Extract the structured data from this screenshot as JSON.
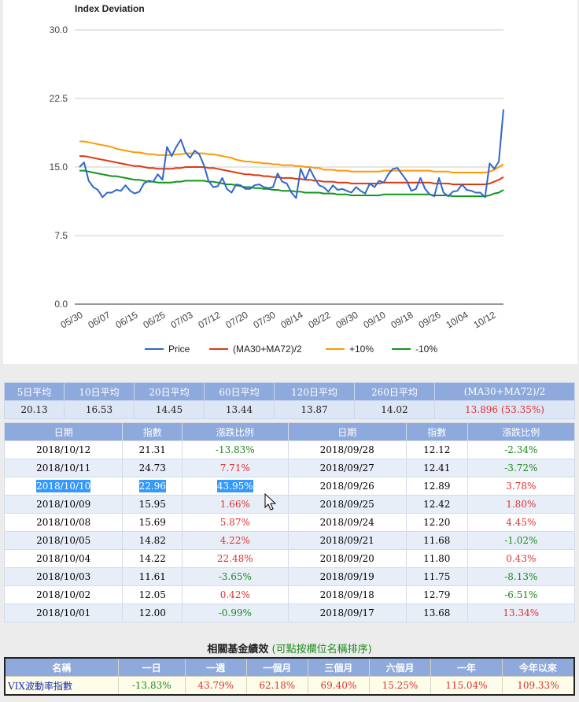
{
  "chart_data": {
    "type": "line",
    "title": "Index Deviation",
    "x_ticks": [
      "05/30",
      "06/07",
      "06/15",
      "06/25",
      "07/03",
      "07/12",
      "07/20",
      "07/30",
      "08/14",
      "08/22",
      "08/30",
      "09/10",
      "09/18",
      "09/26",
      "10/04",
      "10/12"
    ],
    "yticks": [
      "30.0",
      "22.5",
      "15.0",
      "7.5",
      "0.0"
    ],
    "ylim": [
      0,
      30
    ],
    "n_points": 93,
    "legend_position": "bottom",
    "series": [
      {
        "name": "Price",
        "color": "#3366cc",
        "values": [
          15.0,
          15.5,
          13.5,
          12.8,
          12.5,
          11.7,
          12.2,
          12.2,
          12.5,
          12.4,
          13.0,
          12.4,
          12.1,
          12.3,
          13.2,
          13.5,
          13.4,
          14.2,
          13.6,
          17.2,
          16.2,
          17.2,
          18.0,
          16.6,
          16.0,
          16.8,
          16.4,
          15.2,
          13.5,
          12.8,
          12.9,
          13.8,
          12.6,
          12.2,
          13.1,
          13.0,
          12.6,
          12.6,
          13.0,
          13.1,
          12.8,
          12.7,
          12.8,
          14.3,
          13.4,
          13.2,
          12.2,
          11.6,
          14.8,
          13.6,
          14.8,
          13.8,
          13.0,
          12.8,
          12.3,
          13.0,
          12.5,
          12.6,
          12.4,
          12.2,
          12.8,
          12.4,
          12.1,
          13.2,
          12.8,
          13.5,
          13.3,
          14.2,
          14.8,
          14.9,
          14.2,
          13.5,
          12.4,
          12.6,
          13.8,
          12.6,
          12.0,
          11.8,
          13.8,
          12.2,
          11.8,
          12.3,
          12.4,
          13.1,
          12.5,
          12.4,
          12.2,
          12.2,
          11.7,
          15.4,
          14.8,
          15.6,
          21.3
        ]
      },
      {
        "name": "(MA30+MA72)/2",
        "color": "#dc3912",
        "values": [
          16.2,
          16.2,
          16.1,
          16.0,
          15.9,
          15.8,
          15.7,
          15.6,
          15.5,
          15.4,
          15.3,
          15.2,
          15.1,
          15.1,
          15.0,
          14.9,
          14.9,
          14.8,
          14.8,
          14.8,
          14.8,
          14.9,
          14.9,
          15.0,
          15.0,
          15.0,
          15.0,
          15.0,
          14.9,
          14.9,
          14.8,
          14.7,
          14.6,
          14.5,
          14.4,
          14.3,
          14.2,
          14.2,
          14.1,
          14.1,
          14.0,
          14.0,
          13.9,
          13.9,
          13.8,
          13.8,
          13.8,
          13.7,
          13.7,
          13.6,
          13.6,
          13.5,
          13.5,
          13.4,
          13.4,
          13.4,
          13.3,
          13.3,
          13.3,
          13.2,
          13.2,
          13.2,
          13.2,
          13.2,
          13.2,
          13.2,
          13.3,
          13.3,
          13.3,
          13.3,
          13.3,
          13.3,
          13.3,
          13.3,
          13.3,
          13.3,
          13.3,
          13.2,
          13.2,
          13.2,
          13.2,
          13.1,
          13.1,
          13.1,
          13.1,
          13.1,
          13.1,
          13.1,
          13.1,
          13.2,
          13.4,
          13.6,
          13.9
        ]
      },
      {
        "name": "+10%",
        "color": "#ff9900",
        "values": [
          17.8,
          17.8,
          17.7,
          17.6,
          17.5,
          17.4,
          17.3,
          17.2,
          17.0,
          16.9,
          16.8,
          16.7,
          16.6,
          16.6,
          16.5,
          16.4,
          16.4,
          16.3,
          16.3,
          16.3,
          16.3,
          16.4,
          16.4,
          16.5,
          16.5,
          16.5,
          16.5,
          16.5,
          16.4,
          16.4,
          16.3,
          16.2,
          16.1,
          16.0,
          15.8,
          15.7,
          15.6,
          15.6,
          15.5,
          15.5,
          15.4,
          15.4,
          15.3,
          15.3,
          15.2,
          15.2,
          15.2,
          15.1,
          15.1,
          15.0,
          15.0,
          14.9,
          14.9,
          14.7,
          14.7,
          14.7,
          14.6,
          14.6,
          14.6,
          14.5,
          14.5,
          14.5,
          14.5,
          14.5,
          14.5,
          14.5,
          14.6,
          14.6,
          14.6,
          14.6,
          14.6,
          14.6,
          14.6,
          14.6,
          14.6,
          14.6,
          14.6,
          14.5,
          14.5,
          14.5,
          14.5,
          14.4,
          14.4,
          14.4,
          14.4,
          14.4,
          14.4,
          14.4,
          14.4,
          14.5,
          14.7,
          15.0,
          15.3
        ]
      },
      {
        "name": "-10%",
        "color": "#109618",
        "values": [
          14.6,
          14.6,
          14.5,
          14.4,
          14.3,
          14.2,
          14.1,
          14.0,
          14.0,
          13.9,
          13.8,
          13.7,
          13.6,
          13.6,
          13.5,
          13.4,
          13.4,
          13.3,
          13.3,
          13.3,
          13.3,
          13.4,
          13.4,
          13.5,
          13.5,
          13.5,
          13.5,
          13.5,
          13.4,
          13.4,
          13.3,
          13.2,
          13.1,
          13.1,
          13.0,
          12.9,
          12.8,
          12.8,
          12.7,
          12.7,
          12.6,
          12.6,
          12.5,
          12.5,
          12.4,
          12.4,
          12.4,
          12.3,
          12.3,
          12.2,
          12.2,
          12.2,
          12.2,
          12.1,
          12.1,
          12.1,
          12.0,
          12.0,
          12.0,
          11.9,
          11.9,
          11.9,
          11.9,
          11.9,
          11.9,
          11.9,
          12.0,
          12.0,
          12.0,
          12.0,
          12.0,
          12.0,
          12.0,
          12.0,
          12.0,
          12.0,
          12.0,
          11.9,
          11.9,
          11.9,
          11.9,
          11.8,
          11.8,
          11.8,
          11.8,
          11.8,
          11.8,
          11.8,
          11.8,
          11.9,
          12.1,
          12.2,
          12.5
        ]
      }
    ]
  },
  "ma_table": {
    "headers": [
      "5日平均",
      "10日平均",
      "20日平均",
      "60日平均",
      "120日平均",
      "260日平均",
      "(MA30+MA72)/2"
    ],
    "values": [
      "20.13",
      "16.53",
      "14.45",
      "13.44",
      "13.87",
      "14.02",
      "13.896 (53.35%)"
    ]
  },
  "daily_table": {
    "headers": [
      "日期",
      "指數",
      "漲跌比例",
      "日期",
      "指數",
      "漲跌比例"
    ],
    "rows": [
      {
        "d1": "2018/10/12",
        "v1": "21.31",
        "c1": "-13.83%",
        "d2": "2018/09/28",
        "v2": "12.12",
        "c2": "-2.34%"
      },
      {
        "d1": "2018/10/11",
        "v1": "24.73",
        "c1": "7.71%",
        "d2": "2018/09/27",
        "v2": "12.41",
        "c2": "-3.72%"
      },
      {
        "d1": "2018/10/10",
        "v1": "22.96",
        "c1": "43.95%",
        "d2": "2018/09/26",
        "v2": "12.89",
        "c2": "3.78%"
      },
      {
        "d1": "2018/10/09",
        "v1": "15.95",
        "c1": "1.66%",
        "d2": "2018/09/25",
        "v2": "12.42",
        "c2": "1.80%"
      },
      {
        "d1": "2018/10/08",
        "v1": "15.69",
        "c1": "5.87%",
        "d2": "2018/09/24",
        "v2": "12.20",
        "c2": "4.45%"
      },
      {
        "d1": "2018/10/05",
        "v1": "14.82",
        "c1": "4.22%",
        "d2": "2018/09/21",
        "v2": "11.68",
        "c2": "-1.02%"
      },
      {
        "d1": "2018/10/04",
        "v1": "14.22",
        "c1": "22.48%",
        "d2": "2018/09/20",
        "v2": "11.80",
        "c2": "0.43%"
      },
      {
        "d1": "2018/10/03",
        "v1": "11.61",
        "c1": "-3.65%",
        "d2": "2018/09/19",
        "v2": "11.75",
        "c2": "-8.13%"
      },
      {
        "d1": "2018/10/02",
        "v1": "12.05",
        "c1": "0.42%",
        "d2": "2018/09/18",
        "v2": "12.79",
        "c2": "-6.51%"
      },
      {
        "d1": "2018/10/01",
        "v1": "12.00",
        "c1": "-0.99%",
        "d2": "2018/09/17",
        "v2": "13.68",
        "c2": "13.34%"
      }
    ]
  },
  "fund_section": {
    "title": "相關基金績效",
    "hint": "(可點按欄位名稱排序)",
    "headers": [
      "名稱",
      "一日",
      "一週",
      "一個月",
      "三個月",
      "六個月",
      "一年",
      "今年以來"
    ],
    "row": {
      "name": "VIX波動率指數",
      "d1": "-13.83%",
      "w1": "43.79%",
      "m1": "62.18%",
      "m3": "69.40%",
      "m6": "15.25%",
      "y1": "115.04%",
      "ytd": "109.33%"
    }
  },
  "colors": {
    "up": "#e03030",
    "down": "#1a8a1a",
    "header_bg": "#8ea9db",
    "selection": "#3399ff"
  }
}
